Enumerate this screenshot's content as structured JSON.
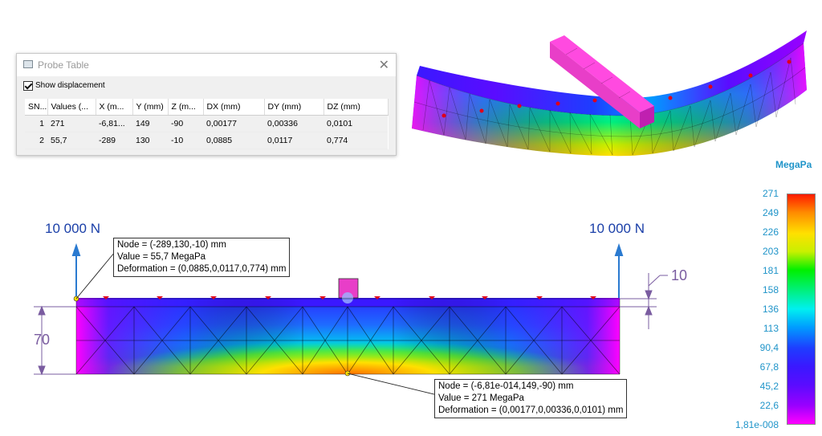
{
  "probe_table": {
    "title": "Probe Table",
    "show_displacement_label": "Show displacement",
    "show_displacement_checked": true,
    "columns": [
      "SN...",
      "Values (...",
      "X (m...",
      "Y (mm)",
      "Z (m...",
      "DX (mm)",
      "DY (mm)",
      "DZ (mm)"
    ],
    "rows": [
      {
        "sn": "1",
        "value": "271",
        "x": "-6,81...",
        "y": "149",
        "z": "-90",
        "dx": "0,00177",
        "dy": "0,00336",
        "dz": "0,0101"
      },
      {
        "sn": "2",
        "value": "55,7",
        "x": "-289",
        "y": "130",
        "z": "-10",
        "dx": "0,0885",
        "dy": "0,0117",
        "dz": "0,774"
      }
    ]
  },
  "legend": {
    "unit": "MegaPa",
    "labels": [
      "271",
      "249",
      "226",
      "203",
      "181",
      "158",
      "136",
      "113",
      "90,4",
      "67,8",
      "45,2",
      "22,6",
      "1,81e-008"
    ]
  },
  "annotations": {
    "force_left": "10 000 N",
    "force_right": "10 000 N",
    "dim_height": "70",
    "dim_thickness": "10",
    "node_top": {
      "node": "Node = (-289,130,-10) mm",
      "value": "Value = 55,7 MegaPa",
      "deformation": "Deformation = (0,0885,0,0117,0,774) mm"
    },
    "node_bottom": {
      "node": "Node = (-6,81e-014,149,-90) mm",
      "value": "Value = 271 MegaPa",
      "deformation": "Deformation = (0,00177,0,00336,0,0101) mm"
    }
  },
  "colors": {
    "legend_text": "#1f94c9",
    "force_text": "#1a3fa8",
    "dimension": "#7a5ca0",
    "load_block": "#e83ec8"
  }
}
